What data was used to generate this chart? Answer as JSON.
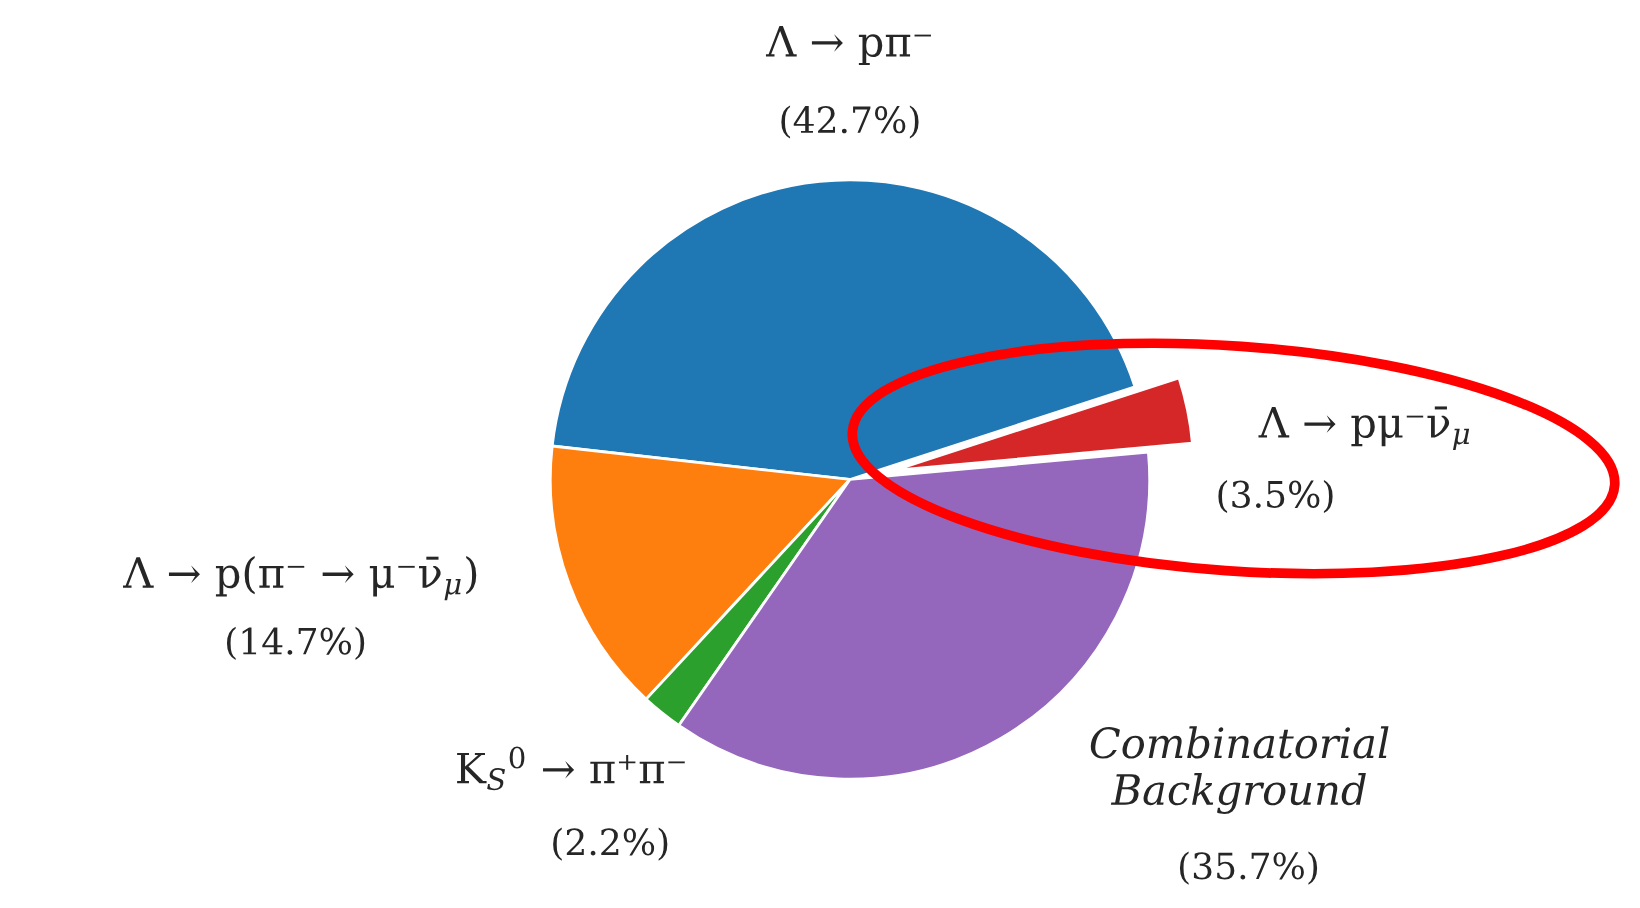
{
  "chart_data": {
    "type": "pie",
    "categories": [
      "Λ → pπ⁻",
      "Λ → p(π⁻ → μ⁻ν̄$_{μ}$)",
      "K$_{S}$$^{0}$ → π⁺π⁻",
      "Combinatorial\nBackground",
      "Λ → pμ⁻ν̄$_{μ}$"
    ],
    "values": [
      42.7,
      14.7,
      2.2,
      35.7,
      3.5
    ],
    "value_labels": [
      "(42.7%)",
      "(14.7%)",
      "(2.2%)",
      "(35.7%)",
      "(3.5%)"
    ],
    "colors": [
      "#1f77b4",
      "#ff7f0e",
      "#2ca02c",
      "#9467bd",
      "#d62728"
    ]
  }
}
